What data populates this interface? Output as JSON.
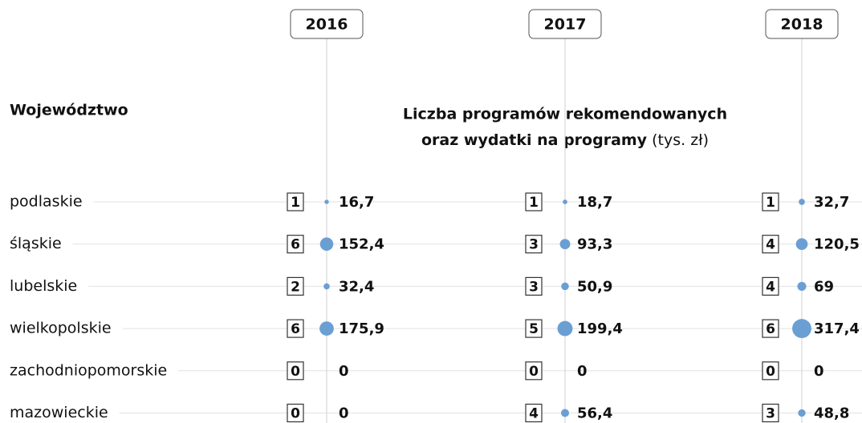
{
  "chart_data": {
    "type": "bubble",
    "row_header": "Województwo",
    "subtitle_line1": "Liczba programów rekomendowanych",
    "subtitle_line2": "oraz wydatki na programy",
    "unit": "(tys. zł)",
    "categories": [
      "podlaskie",
      "śląskie",
      "lubelskie",
      "wielkopolskie",
      "zachodniopomorskie",
      "mazowieckie"
    ],
    "series": [
      {
        "name": "2016",
        "color": "#6b9fd4",
        "counts": [
          1,
          6,
          2,
          6,
          0,
          0
        ],
        "values": [
          16.7,
          152.4,
          32.4,
          175.9,
          0,
          0
        ],
        "value_labels": [
          "16,7",
          "152,4",
          "32,4",
          "175,9",
          "0",
          "0"
        ]
      },
      {
        "name": "2017",
        "color": "#6b9fd4",
        "counts": [
          1,
          3,
          3,
          5,
          0,
          4
        ],
        "values": [
          18.7,
          93.3,
          50.9,
          199.4,
          0,
          56.4
        ],
        "value_labels": [
          "18,7",
          "93,3",
          "50,9",
          "199,4",
          "0",
          "56,4"
        ]
      },
      {
        "name": "2018",
        "color": "#6b9fd4",
        "counts": [
          1,
          4,
          4,
          6,
          0,
          3
        ],
        "values": [
          32.7,
          120.5,
          69,
          317.4,
          0,
          48.8
        ],
        "value_labels": [
          "32,7",
          "120,5",
          "69",
          "317,4",
          "0",
          "48,8"
        ]
      }
    ]
  }
}
